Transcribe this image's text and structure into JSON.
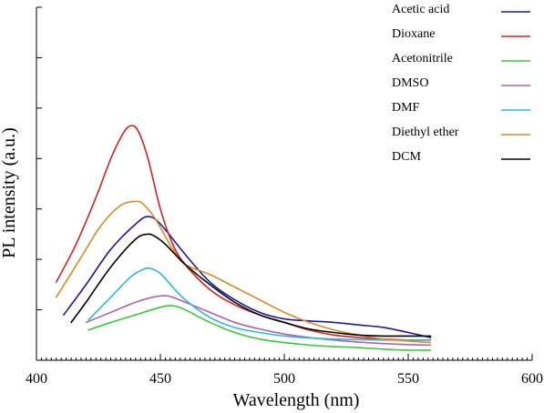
{
  "chart_data": {
    "type": "line",
    "xlabel": "Wavelength (nm)",
    "ylabel": "PL intensity (a.u.)",
    "xlim": [
      400,
      600
    ],
    "ylim": [
      0,
      7
    ],
    "xticks": [
      400,
      450,
      500,
      550,
      600
    ],
    "yticks_labeled": false,
    "legend_position": "top-right",
    "series": [
      {
        "name": "Acetic acid",
        "color": "#1a1aa6",
        "x": [
          411,
          420,
          430,
          440,
          445,
          450,
          460,
          470,
          480,
          490,
          500,
          510,
          520,
          530,
          540,
          550,
          559
        ],
        "y": [
          0.9,
          1.5,
          2.2,
          2.7,
          2.85,
          2.7,
          2.1,
          1.55,
          1.2,
          0.95,
          0.82,
          0.78,
          0.75,
          0.7,
          0.65,
          0.55,
          0.45
        ]
      },
      {
        "name": "Dioxane",
        "color": "#d62020",
        "x": [
          408,
          415,
          420,
          425,
          430,
          435,
          438,
          441,
          445,
          450,
          455,
          460,
          470,
          480,
          490,
          500,
          510,
          520,
          530,
          540,
          550,
          559
        ],
        "y": [
          1.55,
          2.2,
          2.75,
          3.35,
          4.0,
          4.5,
          4.65,
          4.55,
          4.0,
          3.0,
          2.3,
          1.9,
          1.4,
          1.1,
          0.9,
          0.75,
          0.6,
          0.5,
          0.45,
          0.42,
          0.4,
          0.4
        ]
      },
      {
        "name": "Acetonitrile",
        "color": "#33cc33",
        "x": [
          421,
          430,
          440,
          450,
          455,
          460,
          470,
          480,
          490,
          500,
          510,
          520,
          530,
          540,
          550,
          559
        ],
        "y": [
          0.6,
          0.75,
          0.9,
          1.05,
          1.08,
          1.0,
          0.75,
          0.55,
          0.42,
          0.35,
          0.3,
          0.27,
          0.25,
          0.22,
          0.2,
          0.2
        ]
      },
      {
        "name": "DMSO",
        "color": "#b060b0",
        "x": [
          420,
          430,
          440,
          447,
          452,
          455,
          460,
          470,
          480,
          490,
          500,
          510,
          520,
          530,
          540,
          550,
          559
        ],
        "y": [
          0.75,
          0.95,
          1.15,
          1.25,
          1.28,
          1.25,
          1.15,
          0.95,
          0.75,
          0.62,
          0.52,
          0.45,
          0.4,
          0.36,
          0.33,
          0.31,
          0.3
        ]
      },
      {
        "name": "DMF",
        "color": "#2ab8e0",
        "x": [
          421,
          430,
          438,
          443,
          446,
          450,
          455,
          460,
          470,
          480,
          490,
          500,
          510,
          520,
          530,
          540,
          550,
          559
        ],
        "y": [
          0.8,
          1.25,
          1.65,
          1.8,
          1.82,
          1.72,
          1.45,
          1.2,
          0.85,
          0.65,
          0.55,
          0.48,
          0.44,
          0.42,
          0.41,
          0.4,
          0.4,
          0.4
        ]
      },
      {
        "name": "Diethyl ether",
        "color": "#e08a1e",
        "x": [
          408,
          415,
          420,
          425,
          430,
          435,
          440,
          443,
          448,
          455,
          460,
          470,
          480,
          490,
          500,
          510,
          520,
          530,
          540,
          550,
          559
        ],
        "y": [
          1.25,
          1.8,
          2.2,
          2.6,
          2.9,
          3.1,
          3.15,
          3.1,
          2.8,
          2.2,
          1.9,
          1.7,
          1.45,
          1.2,
          0.95,
          0.75,
          0.6,
          0.5,
          0.42,
          0.38,
          0.35
        ]
      },
      {
        "name": "DCM",
        "color": "#000000",
        "x": [
          414,
          420,
          430,
          440,
          445,
          448,
          452,
          460,
          470,
          480,
          490,
          500,
          510,
          520,
          530,
          540,
          550,
          559
        ],
        "y": [
          0.75,
          1.15,
          1.85,
          2.4,
          2.5,
          2.45,
          2.3,
          1.9,
          1.5,
          1.15,
          0.9,
          0.75,
          0.62,
          0.55,
          0.5,
          0.48,
          0.48,
          0.48
        ]
      }
    ]
  }
}
